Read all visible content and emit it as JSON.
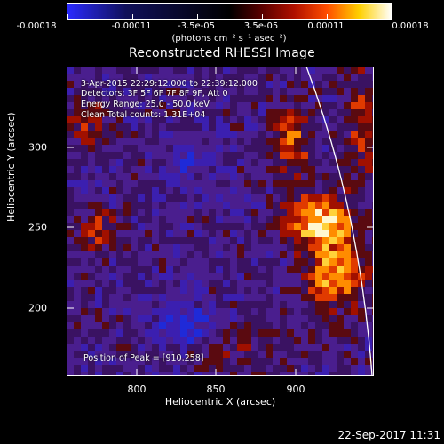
{
  "colorbar": {
    "tick_labels": [
      "-0.00018",
      "-0.00011",
      "-3.5e-05",
      "3.5e-05",
      "0.00011",
      "0.00018"
    ],
    "units_label": "(photons cm⁻² s⁻¹ asec⁻²)"
  },
  "title": "Reconstructed RHESSI Image",
  "annotations": {
    "time_range": "3-Apr-2015 22:29:12.000 to 22:39:12.000",
    "detectors": "Detectors: 3F 5F 6F 7F 8F 9F, Att 0",
    "energy_range": "Energy Range: 25.0 - 50.0 keV",
    "method_counts": "Clean     Total counts: 1.31E+04",
    "peak_position": "Position of Peak = [910,258]"
  },
  "axes": {
    "xlabel": "Heliocentric X (arcsec)",
    "ylabel": "Heliocentric Y (arcsec)",
    "xticks": [
      "800",
      "850",
      "900"
    ],
    "yticks": [
      "300",
      "250",
      "200"
    ],
    "xlim": [
      759,
      947
    ],
    "ylim": [
      148,
      338
    ]
  },
  "timestamp": "22-Sep-2017 11:31",
  "colors": {
    "background": "#000000",
    "colormap_negative": "#2a2aff",
    "colormap_positive": "#ffffff"
  }
}
